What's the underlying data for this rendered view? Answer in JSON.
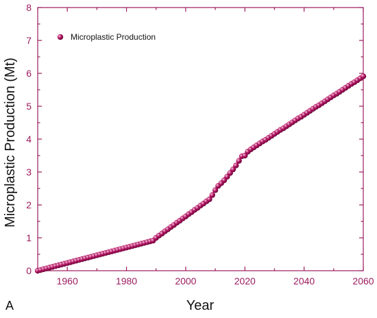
{
  "panel_label": "A",
  "colors": {
    "axis": "#9b1b5e",
    "marker": "#b0105f",
    "marker_highlight": "#f7c6dd"
  },
  "chart_data": {
    "type": "scatter",
    "title": "",
    "xlabel": "Year",
    "ylabel": "Microplastic Production (Mt)",
    "xlim": [
      1950,
      2060
    ],
    "ylim": [
      0,
      8
    ],
    "xticks": [
      1960,
      1980,
      2000,
      2020,
      2040,
      2060
    ],
    "yticks": [
      0,
      1,
      2,
      3,
      4,
      5,
      6,
      7,
      8
    ],
    "grid": false,
    "legend_position": "top-left",
    "series": [
      {
        "name": "Microplastic Production",
        "x": [
          1950,
          1951,
          1952,
          1953,
          1954,
          1955,
          1956,
          1957,
          1958,
          1959,
          1960,
          1961,
          1962,
          1963,
          1964,
          1965,
          1966,
          1967,
          1968,
          1969,
          1970,
          1971,
          1972,
          1973,
          1974,
          1975,
          1976,
          1977,
          1978,
          1979,
          1980,
          1981,
          1982,
          1983,
          1984,
          1985,
          1986,
          1987,
          1988,
          1989,
          1990,
          1991,
          1992,
          1993,
          1994,
          1995,
          1996,
          1997,
          1998,
          1999,
          2000,
          2001,
          2002,
          2003,
          2004,
          2005,
          2006,
          2007,
          2008,
          2009,
          2010,
          2011,
          2012,
          2013,
          2014,
          2015,
          2016,
          2017,
          2018,
          2019,
          2020,
          2021,
          2022,
          2023,
          2024,
          2025,
          2026,
          2027,
          2028,
          2029,
          2030,
          2031,
          2032,
          2033,
          2034,
          2035,
          2036,
          2037,
          2038,
          2039,
          2040,
          2041,
          2042,
          2043,
          2044,
          2045,
          2046,
          2047,
          2048,
          2049,
          2050,
          2051,
          2052,
          2053,
          2054,
          2055,
          2056,
          2057,
          2058,
          2059,
          2060
        ],
        "y": [
          0,
          0.023,
          0.047,
          0.07,
          0.094,
          0.117,
          0.141,
          0.164,
          0.188,
          0.211,
          0.235,
          0.258,
          0.282,
          0.305,
          0.329,
          0.352,
          0.376,
          0.399,
          0.423,
          0.446,
          0.47,
          0.493,
          0.517,
          0.54,
          0.564,
          0.587,
          0.611,
          0.634,
          0.658,
          0.681,
          0.705,
          0.728,
          0.752,
          0.775,
          0.799,
          0.822,
          0.846,
          0.869,
          0.893,
          0.916,
          1.0,
          1.07,
          1.13,
          1.2,
          1.26,
          1.33,
          1.39,
          1.46,
          1.52,
          1.59,
          1.65,
          1.72,
          1.78,
          1.85,
          1.91,
          1.98,
          2.04,
          2.11,
          2.17,
          2.3,
          2.45,
          2.58,
          2.66,
          2.75,
          2.86,
          2.97,
          3.08,
          3.2,
          3.34,
          3.48,
          3.5,
          3.62,
          3.69,
          3.75,
          3.81,
          3.87,
          3.93,
          3.98,
          4.04,
          4.1,
          4.16,
          4.22,
          4.28,
          4.33,
          4.39,
          4.45,
          4.51,
          4.57,
          4.63,
          4.68,
          4.74,
          4.8,
          4.86,
          4.92,
          4.98,
          5.03,
          5.09,
          5.15,
          5.21,
          5.27,
          5.33,
          5.38,
          5.44,
          5.5,
          5.56,
          5.62,
          5.68,
          5.73,
          5.79,
          5.85,
          5.91
        ]
      }
    ]
  }
}
